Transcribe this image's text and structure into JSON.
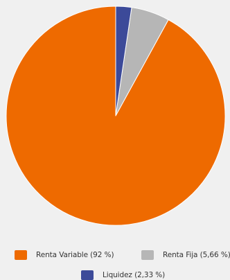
{
  "chart_data": {
    "type": "pie",
    "title": "",
    "slices": [
      {
        "label": "Renta Variable (92 %)",
        "value": 92,
        "color": "#ee6a00"
      },
      {
        "label": "Renta Fija (5,66 %)",
        "value": 5.66,
        "color": "#b6b6b6"
      },
      {
        "label": "Liquidez (2,33 %)",
        "value": 2.33,
        "color": "#3c4a99"
      }
    ],
    "start_angle": "12 o'clock",
    "direction": "counter-clockwise",
    "legend_position": "bottom"
  }
}
